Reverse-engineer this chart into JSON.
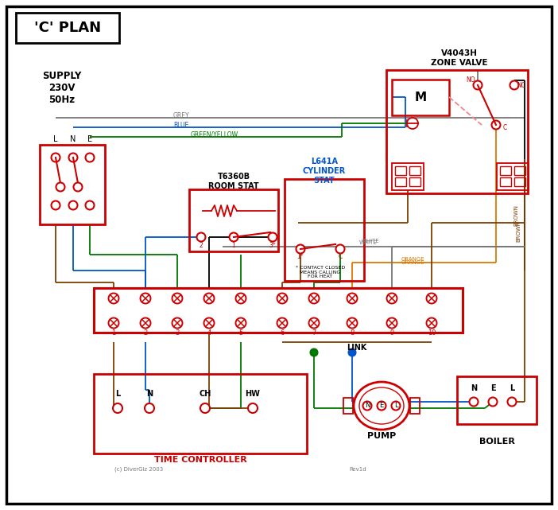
{
  "title": "'C' PLAN",
  "bg_color": "#ffffff",
  "red": "#cc0000",
  "blue": "#0055cc",
  "green": "#007700",
  "grey": "#777777",
  "brown": "#7B3F00",
  "orange": "#DD7700",
  "black": "#000000",
  "pink_dash": "#ee8888",
  "supply_text": "SUPPLY\n230V\n50Hz",
  "zone_valve_label": "V4043H\nZONE VALVE",
  "room_stat_label": "T6360B\nROOM STAT",
  "cyl_stat_label": "L641A\nCYLINDER\nSTAT",
  "tc_label": "TIME CONTROLLER",
  "pump_label": "PUMP",
  "boiler_label": "BOILER",
  "link_label": "LINK",
  "copyright_text": "(c) DiverGiz 2003",
  "rev_text": "Rev1d",
  "contact_note": "* CONTACT CLOSED\nMEANS CALLING\nFOR HEAT"
}
